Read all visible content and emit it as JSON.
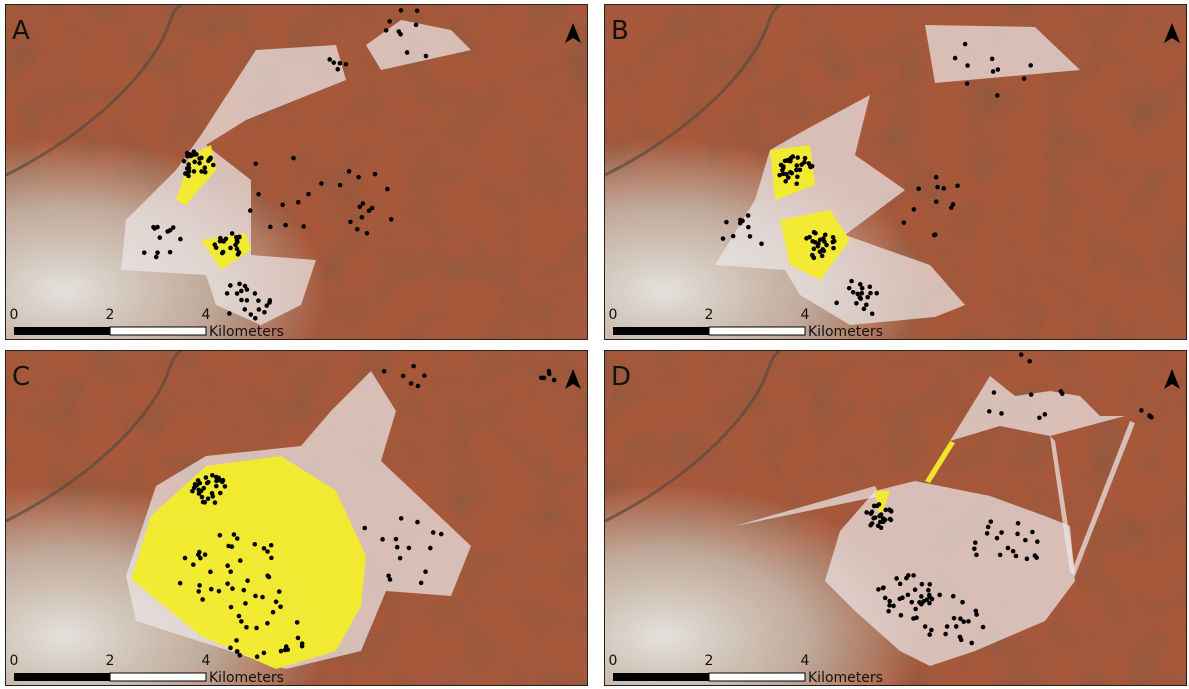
{
  "panels": [
    {
      "label": "A",
      "scale_ticks": [
        0,
        2,
        4
      ],
      "scale_unit": "Kilometers"
    },
    {
      "label": "B",
      "scale_ticks": [
        0,
        2,
        4
      ],
      "scale_unit": "Kilometers"
    },
    {
      "label": "C",
      "scale_ticks": [
        0,
        2,
        4
      ],
      "scale_unit": "Kilometers"
    },
    {
      "label": "D",
      "scale_ticks": [
        0,
        2,
        4
      ],
      "scale_unit": "Kilometers"
    }
  ]
}
